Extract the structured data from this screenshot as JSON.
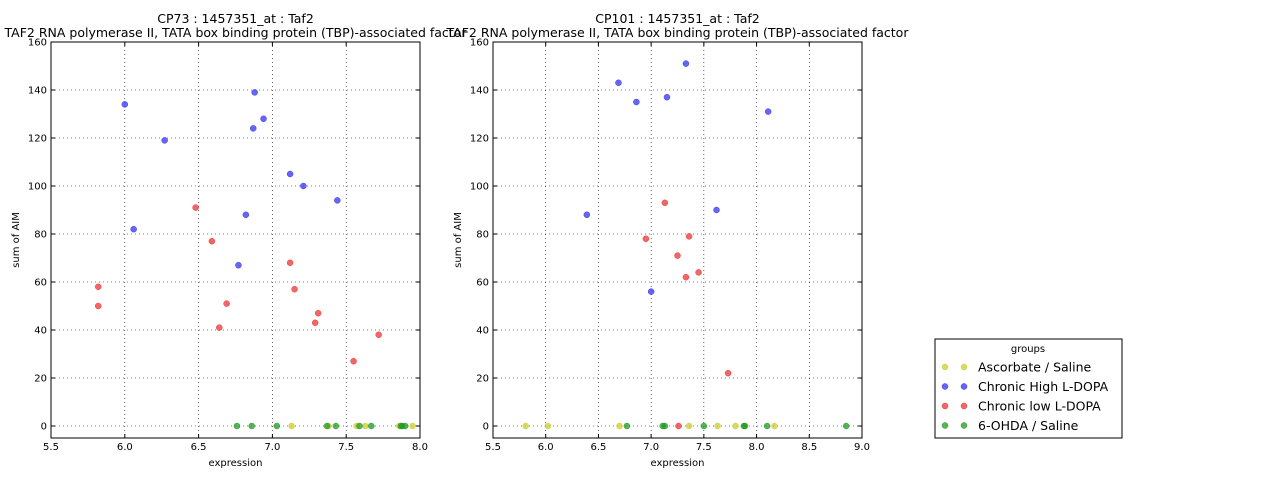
{
  "legend": {
    "title": "groups",
    "items": [
      {
        "label": "Ascorbate / Saline",
        "color": "#cccc33"
      },
      {
        "label": "Chronic High L-DOPA",
        "color": "#3333ee"
      },
      {
        "label": "Chronic low L-DOPA",
        "color": "#ee3333"
      },
      {
        "label": "6-OHDA / Saline",
        "color": "#229922"
      }
    ]
  },
  "chart_data": [
    {
      "type": "scatter",
      "title": "CP73 : 1457351_at : Taf2",
      "subtitle": "TAF2 RNA polymerase II, TATA box binding protein (TBP)-associated factor",
      "xlabel": "expression",
      "ylabel": "sum of AIM",
      "xlim": [
        5.5,
        8.0
      ],
      "ylim": [
        -5,
        160
      ],
      "xticks": [
        5.5,
        6.0,
        6.5,
        7.0,
        7.5,
        8.0
      ],
      "yticks": [
        0,
        20,
        40,
        60,
        80,
        100,
        120,
        140,
        160
      ],
      "grid": true,
      "series": [
        {
          "name": "Ascorbate / Saline",
          "color": "#cccc33",
          "points": [
            [
              7.13,
              0
            ],
            [
              7.38,
              0
            ],
            [
              7.57,
              0
            ],
            [
              7.63,
              0
            ],
            [
              7.86,
              0
            ],
            [
              7.95,
              0
            ]
          ]
        },
        {
          "name": "Chronic High L-DOPA",
          "color": "#3333ee",
          "points": [
            [
              6.0,
              134
            ],
            [
              6.06,
              82
            ],
            [
              6.27,
              119
            ],
            [
              6.77,
              67
            ],
            [
              6.82,
              88
            ],
            [
              6.87,
              124
            ],
            [
              6.88,
              139
            ],
            [
              6.94,
              128
            ],
            [
              7.12,
              105
            ],
            [
              7.21,
              100
            ],
            [
              7.44,
              94
            ]
          ]
        },
        {
          "name": "Chronic low L-DOPA",
          "color": "#ee3333",
          "points": [
            [
              5.82,
              58
            ],
            [
              5.82,
              50
            ],
            [
              6.48,
              91
            ],
            [
              6.59,
              77
            ],
            [
              6.64,
              41
            ],
            [
              6.69,
              51
            ],
            [
              7.12,
              68
            ],
            [
              7.15,
              57
            ],
            [
              7.29,
              43
            ],
            [
              7.31,
              47
            ],
            [
              7.55,
              27
            ],
            [
              7.72,
              38
            ]
          ]
        },
        {
          "name": "6-OHDA / Saline",
          "color": "#229922",
          "points": [
            [
              6.76,
              0
            ],
            [
              6.86,
              0
            ],
            [
              7.03,
              0
            ],
            [
              7.37,
              0
            ],
            [
              7.43,
              0
            ],
            [
              7.59,
              0
            ],
            [
              7.67,
              0
            ],
            [
              7.87,
              0
            ],
            [
              7.88,
              0
            ],
            [
              7.9,
              0
            ]
          ]
        }
      ]
    },
    {
      "type": "scatter",
      "title": "CP101 : 1457351_at : Taf2",
      "subtitle": "TAF2 RNA polymerase II, TATA box binding protein (TBP)-associated factor",
      "xlabel": "expression",
      "ylabel": "sum of AIM",
      "xlim": [
        5.5,
        9.0
      ],
      "ylim": [
        -5,
        160
      ],
      "xticks": [
        5.5,
        6.0,
        6.5,
        7.0,
        7.5,
        8.0,
        8.5,
        9.0
      ],
      "yticks": [
        0,
        20,
        40,
        60,
        80,
        100,
        120,
        140,
        160
      ],
      "grid": true,
      "series": [
        {
          "name": "Ascorbate / Saline",
          "color": "#cccc33",
          "points": [
            [
              5.81,
              0
            ],
            [
              6.02,
              0
            ],
            [
              6.7,
              0
            ],
            [
              7.36,
              0
            ],
            [
              7.63,
              0
            ],
            [
              7.8,
              0
            ],
            [
              8.17,
              0
            ]
          ]
        },
        {
          "name": "Chronic High L-DOPA",
          "color": "#3333ee",
          "points": [
            [
              6.39,
              88
            ],
            [
              6.69,
              143
            ],
            [
              6.86,
              135
            ],
            [
              7.0,
              56
            ],
            [
              7.15,
              137
            ],
            [
              7.33,
              151
            ],
            [
              7.62,
              90
            ],
            [
              8.11,
              131
            ]
          ]
        },
        {
          "name": "Chronic low L-DOPA",
          "color": "#ee3333",
          "points": [
            [
              6.95,
              78
            ],
            [
              7.13,
              93
            ],
            [
              7.25,
              71
            ],
            [
              7.33,
              62
            ],
            [
              7.36,
              79
            ],
            [
              7.45,
              64
            ],
            [
              7.73,
              22
            ],
            [
              7.26,
              0
            ]
          ]
        },
        {
          "name": "6-OHDA / Saline",
          "color": "#229922",
          "points": [
            [
              6.77,
              0
            ],
            [
              7.11,
              0
            ],
            [
              7.13,
              0
            ],
            [
              7.5,
              0
            ],
            [
              7.88,
              0
            ],
            [
              7.89,
              0
            ],
            [
              8.1,
              0
            ],
            [
              8.85,
              0
            ]
          ]
        }
      ]
    }
  ]
}
